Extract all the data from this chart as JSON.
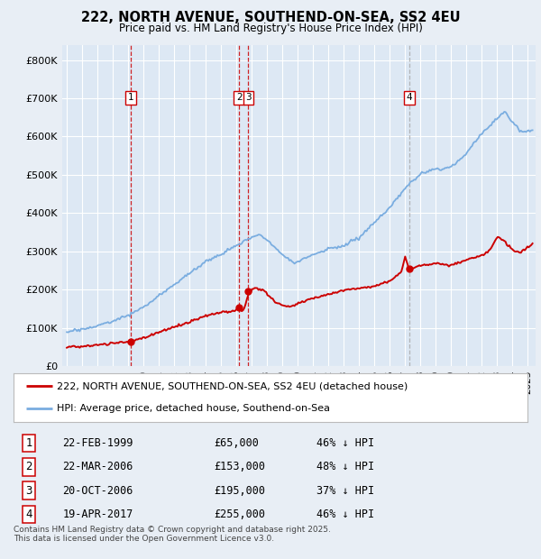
{
  "title": "222, NORTH AVENUE, SOUTHEND-ON-SEA, SS2 4EU",
  "subtitle": "Price paid vs. HM Land Registry's House Price Index (HPI)",
  "background_color": "#e8eef5",
  "plot_bg_color": "#dde8f4",
  "grid_color": "#ffffff",
  "ylim": [
    0,
    840000
  ],
  "yticks": [
    0,
    100000,
    200000,
    300000,
    400000,
    500000,
    600000,
    700000,
    800000
  ],
  "ytick_labels": [
    "£0",
    "£100K",
    "£200K",
    "£300K",
    "£400K",
    "£500K",
    "£600K",
    "£700K",
    "£800K"
  ],
  "xlim_start": 1994.7,
  "xlim_end": 2025.5,
  "sale_dates": [
    1999.14,
    2006.22,
    2006.81,
    2017.3
  ],
  "sale_prices": [
    65000,
    153000,
    195000,
    255000
  ],
  "sale_labels": [
    "1",
    "2",
    "3",
    "4"
  ],
  "legend_line1": "222, NORTH AVENUE, SOUTHEND-ON-SEA, SS2 4EU (detached house)",
  "legend_line2": "HPI: Average price, detached house, Southend-on-Sea",
  "transactions": [
    {
      "num": "1",
      "date": "22-FEB-1999",
      "price": "£65,000",
      "pct": "46% ↓ HPI"
    },
    {
      "num": "2",
      "date": "22-MAR-2006",
      "price": "£153,000",
      "pct": "48% ↓ HPI"
    },
    {
      "num": "3",
      "date": "20-OCT-2006",
      "price": "£195,000",
      "pct": "37% ↓ HPI"
    },
    {
      "num": "4",
      "date": "19-APR-2017",
      "price": "£255,000",
      "pct": "46% ↓ HPI"
    }
  ],
  "footer": "Contains HM Land Registry data © Crown copyright and database right 2025.\nThis data is licensed under the Open Government Licence v3.0.",
  "red_color": "#cc0000",
  "blue_color": "#7aade0"
}
